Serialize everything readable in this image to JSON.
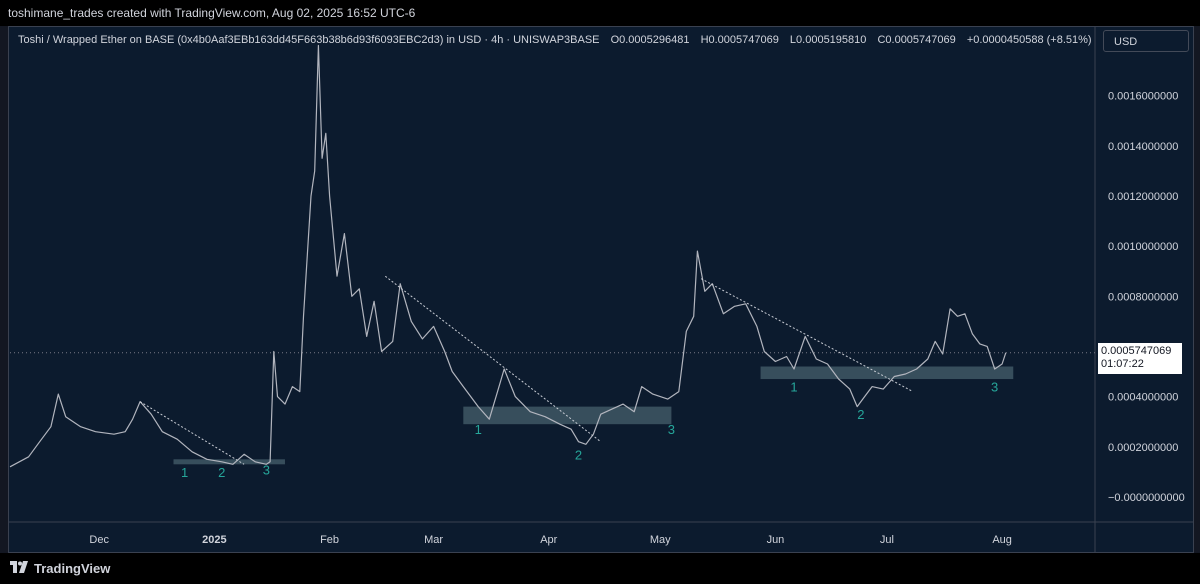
{
  "header": {
    "attribution": "toshimane_trades created with TradingView.com, Aug 02, 2025 16:52 UTC-6"
  },
  "legend": {
    "symbol": "Toshi / Wrapped Ether on BASE (0x4b0Aaf3EBb163dd45F663b38b6d93f6093EBC2d3) in USD · 4h · UNISWAP3BASE",
    "open": "O0.0005296481",
    "high": "H0.0005747069",
    "low": "L0.0005195810",
    "close": "C0.0005747069",
    "change": "+0.0000450588 (+8.51%)"
  },
  "currency_button": {
    "label": "USD"
  },
  "price_tag": {
    "price": "0.0005747069",
    "countdown": "01:07:22"
  },
  "footer": {
    "brand": "TradingView"
  },
  "colors": {
    "background": "#0c1b2e",
    "price_line": "#b2b5be",
    "zone": "#4a6470",
    "wave_label": "#26a69a",
    "axis_text": "#d1d4dc"
  },
  "chart_data": {
    "type": "line",
    "title": "",
    "xlabel": "",
    "ylabel": "",
    "x_ticks": [
      "Dec",
      "2025",
      "Feb",
      "Mar",
      "Apr",
      "May",
      "Jun",
      "Jul",
      "Aug"
    ],
    "x_tick_dates": [
      "2024-12-01",
      "2025-01-01",
      "2025-02-01",
      "2025-03-01",
      "2025-04-01",
      "2025-05-01",
      "2025-06-01",
      "2025-07-01",
      "2025-08-01"
    ],
    "y_ticks": [
      "0.0016000000",
      "0.0014000000",
      "0.0012000000",
      "0.0010000000",
      "0.0008000000",
      "0.0004000000",
      "0.0002000000",
      "−0.0000000000"
    ],
    "y_tick_values": [
      0.0016,
      0.0014,
      0.0012,
      0.001,
      0.0008,
      0.0004,
      0.0002,
      0
    ],
    "ylim": [
      -0.0001,
      0.00179
    ],
    "xlim": [
      "2024-11-07",
      "2025-08-26"
    ],
    "last_price": 0.0005747069,
    "series": [
      {
        "points": [
          [
            "2024-11-07",
            0.00012
          ],
          [
            "2024-11-12",
            0.00016
          ],
          [
            "2024-11-15",
            0.00022
          ],
          [
            "2024-11-18",
            0.00028
          ],
          [
            "2024-11-20",
            0.00041
          ],
          [
            "2024-11-22",
            0.00032
          ],
          [
            "2024-11-26",
            0.00028
          ],
          [
            "2024-11-30",
            0.00026
          ],
          [
            "2024-12-05",
            0.00025
          ],
          [
            "2024-12-08",
            0.00026
          ],
          [
            "2024-12-10",
            0.00031
          ],
          [
            "2024-12-12",
            0.00038
          ],
          [
            "2024-12-15",
            0.00033
          ],
          [
            "2024-12-18",
            0.00026
          ],
          [
            "2024-12-22",
            0.00023
          ],
          [
            "2024-12-26",
            0.00018
          ],
          [
            "2024-12-30",
            0.00015
          ],
          [
            "2025-01-03",
            0.00014
          ],
          [
            "2025-01-06",
            0.00013
          ],
          [
            "2025-01-09",
            0.00017
          ],
          [
            "2025-01-12",
            0.00014
          ],
          [
            "2025-01-15",
            0.00013
          ],
          [
            "2025-01-16",
            0.00014
          ],
          [
            "2025-01-17",
            0.00058
          ],
          [
            "2025-01-18",
            0.0004
          ],
          [
            "2025-01-20",
            0.00037
          ],
          [
            "2025-01-22",
            0.00044
          ],
          [
            "2025-01-24",
            0.00042
          ],
          [
            "2025-01-25",
            0.00072
          ],
          [
            "2025-01-27",
            0.0012
          ],
          [
            "2025-01-28",
            0.0013
          ],
          [
            "2025-01-29",
            0.0018
          ],
          [
            "2025-01-30",
            0.00135
          ],
          [
            "2025-01-31",
            0.00145
          ],
          [
            "2025-02-01",
            0.0012
          ],
          [
            "2025-02-03",
            0.00088
          ],
          [
            "2025-02-05",
            0.00105
          ],
          [
            "2025-02-07",
            0.0008
          ],
          [
            "2025-02-09",
            0.00083
          ],
          [
            "2025-02-11",
            0.00064
          ],
          [
            "2025-02-13",
            0.00078
          ],
          [
            "2025-02-15",
            0.00058
          ],
          [
            "2025-02-18",
            0.00062
          ],
          [
            "2025-02-20",
            0.00085
          ],
          [
            "2025-02-23",
            0.0007
          ],
          [
            "2025-02-26",
            0.00063
          ],
          [
            "2025-03-01",
            0.00068
          ],
          [
            "2025-03-04",
            0.00058
          ],
          [
            "2025-03-06",
            0.0005
          ],
          [
            "2025-03-09",
            0.00044
          ],
          [
            "2025-03-13",
            0.00036
          ],
          [
            "2025-03-16",
            0.00031
          ],
          [
            "2025-03-18",
            0.00041
          ],
          [
            "2025-03-20",
            0.00051
          ],
          [
            "2025-03-23",
            0.0004
          ],
          [
            "2025-03-27",
            0.00034
          ],
          [
            "2025-03-31",
            0.00032
          ],
          [
            "2025-04-04",
            0.00029
          ],
          [
            "2025-04-07",
            0.00027
          ],
          [
            "2025-04-09",
            0.00022
          ],
          [
            "2025-04-11",
            0.00021
          ],
          [
            "2025-04-13",
            0.00025
          ],
          [
            "2025-04-15",
            0.00033
          ],
          [
            "2025-04-18",
            0.00035
          ],
          [
            "2025-04-21",
            0.00037
          ],
          [
            "2025-04-24",
            0.00034
          ],
          [
            "2025-04-26",
            0.00044
          ],
          [
            "2025-04-29",
            0.00041
          ],
          [
            "2025-05-03",
            0.00039
          ],
          [
            "2025-05-06",
            0.00042
          ],
          [
            "2025-05-08",
            0.00066
          ],
          [
            "2025-05-10",
            0.00072
          ],
          [
            "2025-05-11",
            0.00098
          ],
          [
            "2025-05-13",
            0.00082
          ],
          [
            "2025-05-15",
            0.00085
          ],
          [
            "2025-05-18",
            0.00073
          ],
          [
            "2025-05-21",
            0.00076
          ],
          [
            "2025-05-24",
            0.00077
          ],
          [
            "2025-05-27",
            0.00068
          ],
          [
            "2025-05-29",
            0.00058
          ],
          [
            "2025-06-01",
            0.00054
          ],
          [
            "2025-06-04",
            0.00056
          ],
          [
            "2025-06-06",
            0.00051
          ],
          [
            "2025-06-09",
            0.00064
          ],
          [
            "2025-06-12",
            0.00055
          ],
          [
            "2025-06-15",
            0.00053
          ],
          [
            "2025-06-18",
            0.00047
          ],
          [
            "2025-06-21",
            0.00043
          ],
          [
            "2025-06-23",
            0.00036
          ],
          [
            "2025-06-25",
            0.0004
          ],
          [
            "2025-06-27",
            0.00044
          ],
          [
            "2025-06-30",
            0.00043
          ],
          [
            "2025-07-03",
            0.00048
          ],
          [
            "2025-07-06",
            0.00049
          ],
          [
            "2025-07-09",
            0.00051
          ],
          [
            "2025-07-12",
            0.00055
          ],
          [
            "2025-07-14",
            0.00062
          ],
          [
            "2025-07-16",
            0.00057
          ],
          [
            "2025-07-18",
            0.00075
          ],
          [
            "2025-07-20",
            0.00072
          ],
          [
            "2025-07-22",
            0.00073
          ],
          [
            "2025-07-24",
            0.00065
          ],
          [
            "2025-07-26",
            0.00061
          ],
          [
            "2025-07-28",
            0.0006
          ],
          [
            "2025-07-30",
            0.00051
          ],
          [
            "2025-08-01",
            0.00053
          ],
          [
            "2025-08-02",
            0.000575
          ]
        ]
      }
    ],
    "support_zones": [
      {
        "x0": "2024-12-21",
        "x1": "2025-01-20",
        "y0": 0.00013,
        "y1": 0.00015
      },
      {
        "x0": "2025-03-09",
        "x1": "2025-05-04",
        "y0": 0.00029,
        "y1": 0.00036
      },
      {
        "x0": "2025-05-28",
        "x1": "2025-08-04",
        "y0": 0.00047,
        "y1": 0.00052
      }
    ],
    "trendlines": [
      {
        "x0": "2024-12-12",
        "y0": 0.00038,
        "x1": "2025-01-09",
        "y1": 0.00013
      },
      {
        "x0": "2025-02-16",
        "y0": 0.00088,
        "x1": "2025-04-15",
        "y1": 0.00022
      },
      {
        "x0": "2025-05-12",
        "y0": 0.00087,
        "x1": "2025-07-08",
        "y1": 0.00042
      }
    ],
    "wave_labels": [
      {
        "text": "1",
        "x": "2024-12-24",
        "y": 8e-05
      },
      {
        "text": "2",
        "x": "2025-01-03",
        "y": 8e-05
      },
      {
        "text": "3",
        "x": "2025-01-15",
        "y": 9e-05
      },
      {
        "text": "1",
        "x": "2025-03-13",
        "y": 0.00025
      },
      {
        "text": "2",
        "x": "2025-04-09",
        "y": 0.00015
      },
      {
        "text": "3",
        "x": "2025-05-04",
        "y": 0.00025
      },
      {
        "text": "1",
        "x": "2025-06-06",
        "y": 0.00042
      },
      {
        "text": "2",
        "x": "2025-06-24",
        "y": 0.00031
      },
      {
        "text": "3",
        "x": "2025-07-30",
        "y": 0.00042
      }
    ]
  }
}
